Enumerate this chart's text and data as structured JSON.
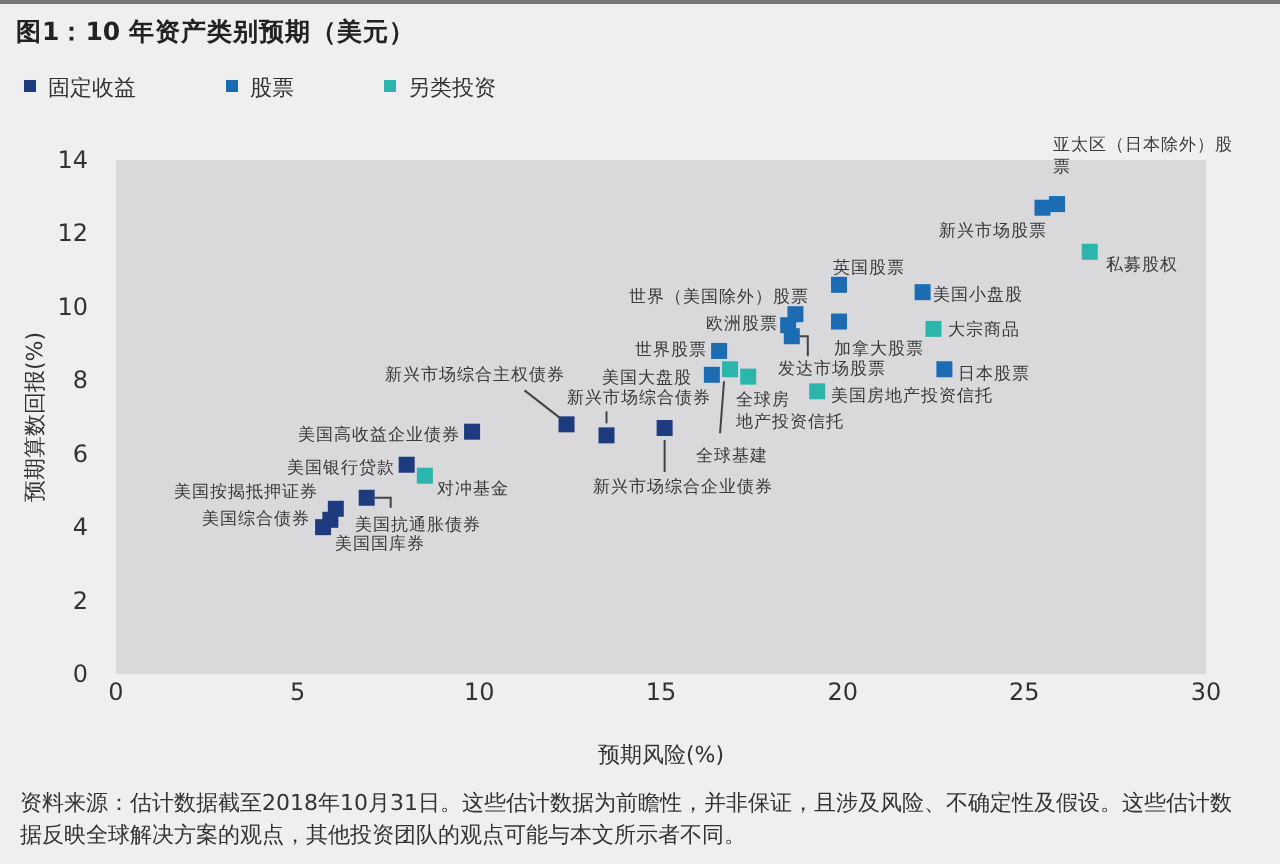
{
  "chart_data": {
    "type": "scatter",
    "title": "图1：10 年资产类别预期（美元）",
    "xlabel": "预期风险(%)",
    "ylabel": "预期算数回报(%)",
    "xlim": [
      0,
      30
    ],
    "xticks": [
      0,
      5,
      10,
      15,
      20,
      25,
      30
    ],
    "ylim": [
      0,
      14
    ],
    "yticks": [
      0,
      2,
      4,
      6,
      8,
      10,
      12,
      14
    ],
    "grid": false,
    "legend": "top left",
    "marker": "square",
    "series": [
      {
        "name": "固定收益",
        "color": "#1f3b7f",
        "x": [
          9.8,
          8.0,
          6.9,
          6.05,
          5.9,
          5.7,
          12.4,
          13.5,
          15.1
        ],
        "values": [
          6.6,
          5.7,
          4.8,
          4.5,
          4.2,
          4.0,
          6.8,
          6.5,
          6.7
        ]
      },
      {
        "name": "股票",
        "color": "#1b6cb2",
        "x": [
          16.4,
          16.6,
          18.7,
          18.5,
          18.6,
          19.9,
          19.9,
          22.2,
          22.8,
          25.5,
          25.9
        ],
        "values": [
          8.15,
          8.8,
          9.8,
          9.5,
          9.2,
          10.6,
          9.6,
          10.4,
          8.3,
          12.7,
          12.8
        ]
      },
      {
        "name": "另类投资",
        "color": "#2bb5ac",
        "x": [
          8.5,
          16.9,
          17.4,
          19.3,
          22.5,
          26.8
        ],
        "values": [
          5.4,
          8.3,
          8.1,
          7.7,
          9.4,
          11.5
        ]
      }
    ],
    "annotations": [
      {
        "text": "美国高收益企业债券",
        "x": 9.8,
        "y": 6.6
      },
      {
        "text": "美国银行贷款",
        "x": 8.0,
        "y": 5.7
      },
      {
        "text": "美国抗通胀债券",
        "x": 6.9,
        "y": 4.8
      },
      {
        "text": "美国按揭抵押证券",
        "x": 6.05,
        "y": 4.5
      },
      {
        "text": "美国综合债券",
        "x": 5.9,
        "y": 4.2
      },
      {
        "text": "美国国库券",
        "x": 5.7,
        "y": 4.0
      },
      {
        "text": "新兴市场综合主权债券",
        "x": 12.4,
        "y": 6.8
      },
      {
        "text": "新兴市场综合债券",
        "x": 13.5,
        "y": 6.5
      },
      {
        "text": "新兴市场综合企业债券",
        "x": 15.1,
        "y": 6.7
      },
      {
        "text": "美国大盘股",
        "x": 16.4,
        "y": 8.15
      },
      {
        "text": "世界股票",
        "x": 16.6,
        "y": 8.8
      },
      {
        "text": "世界（美国除外）股票",
        "x": 18.7,
        "y": 9.8
      },
      {
        "text": "欧洲股票",
        "x": 18.5,
        "y": 9.5
      },
      {
        "text": "发达市场股票",
        "x": 18.6,
        "y": 9.2
      },
      {
        "text": "英国股票",
        "x": 19.9,
        "y": 10.6
      },
      {
        "text": "加拿大股票",
        "x": 19.9,
        "y": 9.6
      },
      {
        "text": "美国小盘股",
        "x": 22.2,
        "y": 10.4
      },
      {
        "text": "日本股票",
        "x": 22.8,
        "y": 8.3
      },
      {
        "text": "新兴市场股票",
        "x": 25.5,
        "y": 12.7
      },
      {
        "text": "亚太区（日本除外）股票",
        "x": 25.9,
        "y": 12.8
      },
      {
        "text": "对冲基金",
        "x": 8.5,
        "y": 5.4
      },
      {
        "text": "全球基建",
        "x": 16.9,
        "y": 8.3
      },
      {
        "text": "全球房地产投资信托",
        "x": 17.4,
        "y": 8.1
      },
      {
        "text": "美国房地产投资信托",
        "x": 19.3,
        "y": 7.7
      },
      {
        "text": "大宗商品",
        "x": 22.5,
        "y": 9.4
      },
      {
        "text": "私募股权",
        "x": 26.8,
        "y": 11.5
      },
      "资料来源：估计数据截至2018年10月31日。这些估计数据为前瞻性，并非保证，且涉及风险、不确定性及假设。这些估计数据反映全球解决方案的观点，其他投资团队的观点可能与本文所示者不同。"
    ]
  }
}
